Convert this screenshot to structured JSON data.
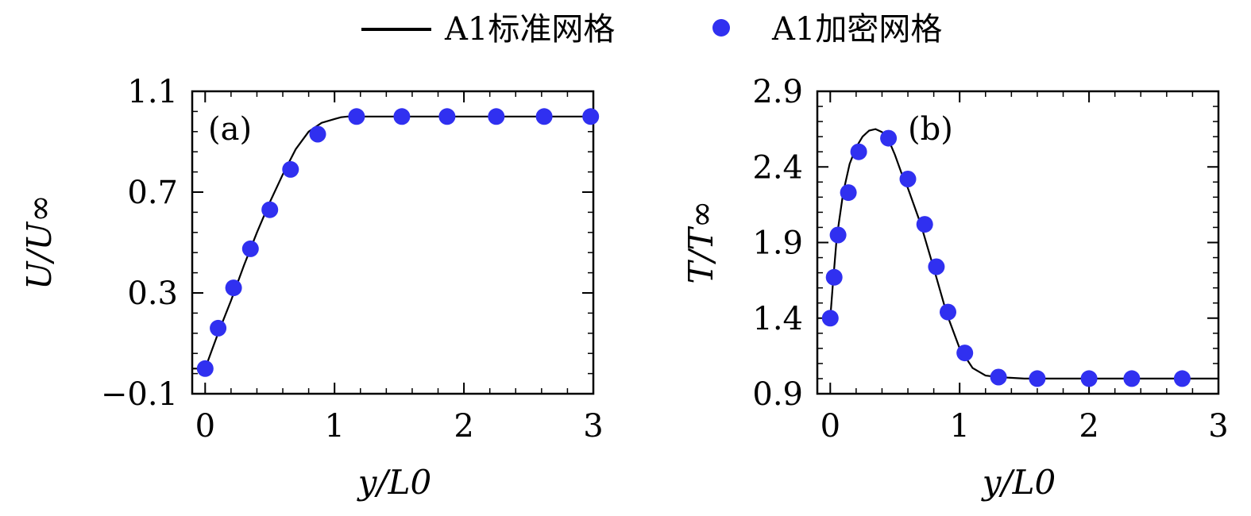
{
  "legend": {
    "line_label": "A1标准网格",
    "marker_label": "A1加密网格"
  },
  "colors": {
    "marker": "#3030f0",
    "line": "#000000"
  },
  "chart_data": [
    {
      "type": "line",
      "panel_label": "(a)",
      "xlabel": "y/L0",
      "ylabel": "U/U∞",
      "xlim": [
        -0.1,
        3.0
      ],
      "ylim": [
        -0.1,
        1.1
      ],
      "xticks": [
        0,
        1,
        2,
        3
      ],
      "xtick_labels": [
        "0",
        "1",
        "2",
        "3"
      ],
      "yticks": [
        -0.1,
        0.3,
        0.7,
        1.1
      ],
      "ytick_labels": [
        "−0.1",
        "0.3",
        "0.7",
        "1.1"
      ],
      "series": [
        {
          "name": "A1标准网格",
          "kind": "line",
          "x": [
            -0.1,
            0.0,
            0.05,
            0.1,
            0.2,
            0.3,
            0.4,
            0.5,
            0.6,
            0.7,
            0.8,
            0.9,
            1.0,
            1.05,
            1.1,
            1.2,
            1.5,
            2.0,
            2.5,
            3.0
          ],
          "y": [
            0.0,
            0.0,
            0.07,
            0.14,
            0.27,
            0.41,
            0.54,
            0.66,
            0.77,
            0.87,
            0.94,
            0.975,
            0.99,
            0.997,
            1.0,
            1.0,
            1.0,
            1.0,
            1.0,
            1.0
          ]
        },
        {
          "name": "A1加密网格",
          "kind": "scatter",
          "x": [
            0.0,
            0.1,
            0.22,
            0.35,
            0.5,
            0.66,
            0.87,
            1.17,
            1.52,
            1.87,
            2.25,
            2.62,
            2.98
          ],
          "y": [
            0.0,
            0.16,
            0.32,
            0.475,
            0.63,
            0.79,
            0.93,
            1.0,
            1.0,
            1.0,
            1.0,
            1.0,
            1.0
          ]
        }
      ]
    },
    {
      "type": "line",
      "panel_label": "(b)",
      "xlabel": "y/L0",
      "ylabel": "T/T∞",
      "xlim": [
        -0.1,
        3.0
      ],
      "ylim": [
        0.9,
        2.9
      ],
      "xticks": [
        0,
        1,
        2,
        3
      ],
      "xtick_labels": [
        "0",
        "1",
        "2",
        "3"
      ],
      "yticks": [
        0.9,
        1.4,
        1.9,
        2.4,
        2.9
      ],
      "ytick_labels": [
        "0.9",
        "1.4",
        "1.9",
        "2.4",
        "2.9"
      ],
      "series": [
        {
          "name": "A1标准网格",
          "kind": "line",
          "x": [
            0.0,
            0.02,
            0.05,
            0.1,
            0.15,
            0.2,
            0.25,
            0.3,
            0.35,
            0.4,
            0.45,
            0.5,
            0.55,
            0.6,
            0.7,
            0.8,
            0.9,
            1.0,
            1.1,
            1.2,
            1.3,
            1.5,
            2.0,
            2.5,
            3.0
          ],
          "y": [
            1.4,
            1.62,
            1.93,
            2.23,
            2.42,
            2.53,
            2.6,
            2.64,
            2.65,
            2.63,
            2.58,
            2.48,
            2.36,
            2.26,
            2.02,
            1.73,
            1.43,
            1.2,
            1.07,
            1.02,
            1.01,
            1.0,
            1.0,
            1.0,
            1.0
          ]
        },
        {
          "name": "A1加密网格",
          "kind": "scatter",
          "x": [
            0.0,
            0.03,
            0.06,
            0.14,
            0.22,
            0.45,
            0.6,
            0.73,
            0.82,
            0.91,
            1.04,
            1.3,
            1.6,
            2.0,
            2.33,
            2.72
          ],
          "y": [
            1.4,
            1.67,
            1.95,
            2.23,
            2.5,
            2.59,
            2.32,
            2.02,
            1.74,
            1.44,
            1.17,
            1.01,
            1.0,
            1.0,
            1.0,
            1.0
          ]
        }
      ]
    }
  ]
}
